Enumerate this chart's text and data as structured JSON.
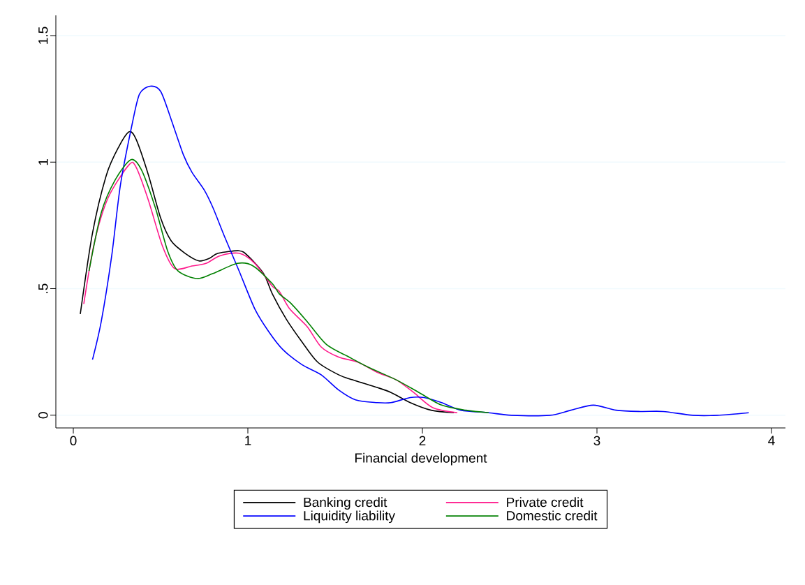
{
  "chart_data": {
    "type": "line",
    "xlabel": "Financial development",
    "xlim": [
      -0.1,
      4.08
    ],
    "ylim": [
      -0.05,
      1.58
    ],
    "xticks": [
      0,
      1,
      2,
      3,
      4
    ],
    "yticks": [
      0,
      {
        "value": 0.5,
        "label": ".5"
      },
      1,
      1.5
    ],
    "grid": "y",
    "legend": "bottom",
    "line_style": "solid",
    "marker": "none",
    "series": [
      {
        "name": "Banking credit",
        "color": "#000000",
        "x": [
          0.04,
          0.11,
          0.19,
          0.26,
          0.32,
          0.36,
          0.43,
          0.5,
          0.56,
          0.64,
          0.72,
          0.78,
          0.83,
          0.95,
          1.0,
          1.09,
          1.14,
          1.22,
          1.31,
          1.4,
          1.52,
          1.6,
          1.74,
          1.82,
          1.93,
          2.05,
          2.18
        ],
        "values": [
          0.4,
          0.72,
          0.95,
          1.06,
          1.12,
          1.09,
          0.95,
          0.78,
          0.69,
          0.64,
          0.61,
          0.62,
          0.64,
          0.65,
          0.63,
          0.56,
          0.48,
          0.38,
          0.29,
          0.21,
          0.16,
          0.14,
          0.11,
          0.09,
          0.05,
          0.02,
          0.01
        ]
      },
      {
        "name": "Private credit",
        "color": "#ff1a8c",
        "x": [
          0.06,
          0.12,
          0.2,
          0.32,
          0.36,
          0.43,
          0.51,
          0.58,
          0.68,
          0.76,
          0.84,
          0.95,
          1.04,
          1.14,
          1.18,
          1.24,
          1.34,
          1.42,
          1.52,
          1.63,
          1.74,
          1.85,
          1.95,
          2.06,
          2.2
        ],
        "values": [
          0.44,
          0.68,
          0.86,
          0.99,
          0.98,
          0.85,
          0.67,
          0.58,
          0.59,
          0.6,
          0.63,
          0.64,
          0.6,
          0.51,
          0.49,
          0.42,
          0.35,
          0.27,
          0.23,
          0.21,
          0.17,
          0.14,
          0.09,
          0.03,
          0.01
        ]
      },
      {
        "name": "Liquidity liability",
        "color": "#0000ff",
        "x": [
          0.11,
          0.16,
          0.22,
          0.27,
          0.34,
          0.38,
          0.44,
          0.5,
          0.56,
          0.63,
          0.68,
          0.75,
          0.8,
          0.87,
          0.95,
          1.04,
          1.12,
          1.2,
          1.31,
          1.42,
          1.52,
          1.62,
          1.74,
          1.82,
          1.93,
          2.01,
          2.11,
          2.22,
          2.38,
          2.51,
          2.73,
          2.85,
          2.98,
          3.11,
          3.25,
          3.38,
          3.55,
          3.69,
          3.87
        ],
        "values": [
          0.22,
          0.37,
          0.63,
          0.91,
          1.16,
          1.27,
          1.3,
          1.28,
          1.17,
          1.03,
          0.96,
          0.89,
          0.82,
          0.7,
          0.57,
          0.42,
          0.33,
          0.26,
          0.2,
          0.16,
          0.1,
          0.06,
          0.05,
          0.05,
          0.07,
          0.07,
          0.05,
          0.02,
          0.01,
          0,
          0,
          0.02,
          0.04,
          0.02,
          0.015,
          0.015,
          0,
          0,
          0.01
        ]
      },
      {
        "name": "Domestic credit",
        "color": "#008000",
        "x": [
          0.09,
          0.16,
          0.24,
          0.33,
          0.39,
          0.47,
          0.54,
          0.6,
          0.71,
          0.8,
          0.94,
          1.03,
          1.14,
          1.18,
          1.25,
          1.34,
          1.45,
          1.58,
          1.69,
          1.85,
          1.98,
          2.11,
          2.25,
          2.38
        ],
        "values": [
          0.57,
          0.8,
          0.93,
          1.01,
          0.97,
          0.82,
          0.65,
          0.57,
          0.54,
          0.56,
          0.6,
          0.59,
          0.52,
          0.48,
          0.44,
          0.37,
          0.28,
          0.23,
          0.19,
          0.14,
          0.09,
          0.04,
          0.02,
          0.01
        ]
      }
    ]
  }
}
